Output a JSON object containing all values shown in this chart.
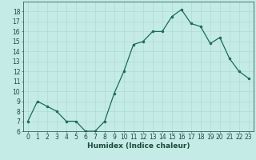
{
  "x": [
    0,
    1,
    2,
    3,
    4,
    5,
    6,
    7,
    8,
    9,
    10,
    11,
    12,
    13,
    14,
    15,
    16,
    17,
    18,
    19,
    20,
    21,
    22,
    23
  ],
  "y": [
    7,
    9,
    8.5,
    8,
    7,
    7,
    6,
    6,
    7,
    9.8,
    12,
    14.7,
    15,
    16,
    16,
    17.5,
    18.2,
    16.8,
    16.5,
    14.8,
    15.4,
    13.3,
    12,
    11.3
  ],
  "line_color": "#1a6b5a",
  "marker": "o",
  "markersize": 2,
  "linewidth": 0.9,
  "bg_color": "#c5ebe6",
  "grid_color": "#a8d8d2",
  "xlabel": "Humidex (Indice chaleur)",
  "ylim": [
    6,
    19
  ],
  "xlim": [
    -0.5,
    23.5
  ],
  "yticks": [
    6,
    7,
    8,
    9,
    10,
    11,
    12,
    13,
    14,
    15,
    16,
    17,
    18
  ],
  "xticks": [
    0,
    1,
    2,
    3,
    4,
    5,
    6,
    7,
    8,
    9,
    10,
    11,
    12,
    13,
    14,
    15,
    16,
    17,
    18,
    19,
    20,
    21,
    22,
    23
  ],
  "xlabel_fontsize": 6.5,
  "tick_fontsize": 5.5,
  "axis_color": "#1a4a3a"
}
